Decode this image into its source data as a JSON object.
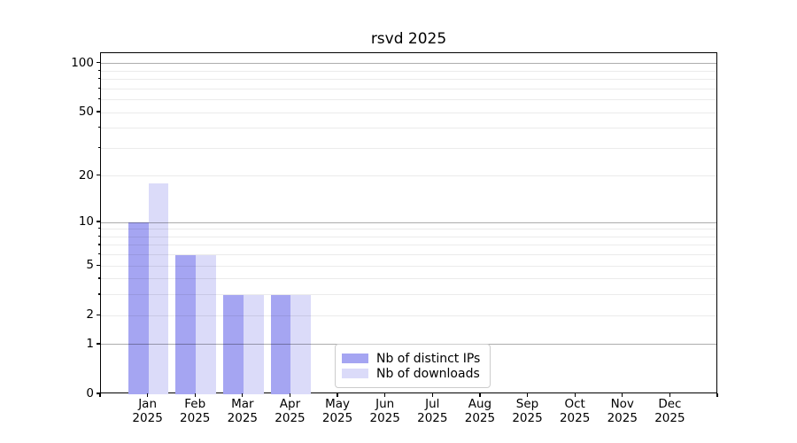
{
  "title": "rsvd 2025",
  "chart_data": {
    "type": "bar",
    "title": "rsvd 2025",
    "categories": [
      "Jan",
      "Feb",
      "Mar",
      "Apr",
      "May",
      "Jun",
      "Jul",
      "Aug",
      "Sep",
      "Oct",
      "Nov",
      "Dec"
    ],
    "category_year": "2025",
    "series": [
      {
        "name": "Nb of distinct IPs",
        "color": "#a5a5f2",
        "values": [
          10,
          6,
          3,
          3,
          0,
          0,
          0,
          0,
          0,
          0,
          0,
          0
        ]
      },
      {
        "name": "Nb of downloads",
        "color": "#dbdbf9",
        "values": [
          18,
          6,
          3,
          3,
          0,
          0,
          0,
          0,
          0,
          0,
          0,
          0
        ]
      }
    ],
    "xlabel": "",
    "ylabel": "",
    "yscale": "log10(1+y)",
    "yticks": [
      0,
      1,
      2,
      5,
      10,
      20,
      50,
      100
    ],
    "major_gridlines": [
      1,
      10,
      100
    ],
    "minor_gridlines": [
      2,
      3,
      4,
      5,
      6,
      7,
      8,
      9,
      20,
      30,
      40,
      50,
      60,
      70,
      80,
      90
    ],
    "ylim": [
      0,
      115
    ],
    "grid": "on",
    "grid_above_bars": true,
    "legend": {
      "labels": [
        "Nb of distinct IPs",
        "Nb of downloads"
      ],
      "position": "lower center"
    }
  },
  "colors": {
    "spine": "#000000",
    "text": "#000000",
    "major_grid": "rgba(0,0,0,0.32)",
    "minor_grid": "rgba(0,0,0,0.08)",
    "legend_border": "#cccccc",
    "background": "#ffffff"
  }
}
